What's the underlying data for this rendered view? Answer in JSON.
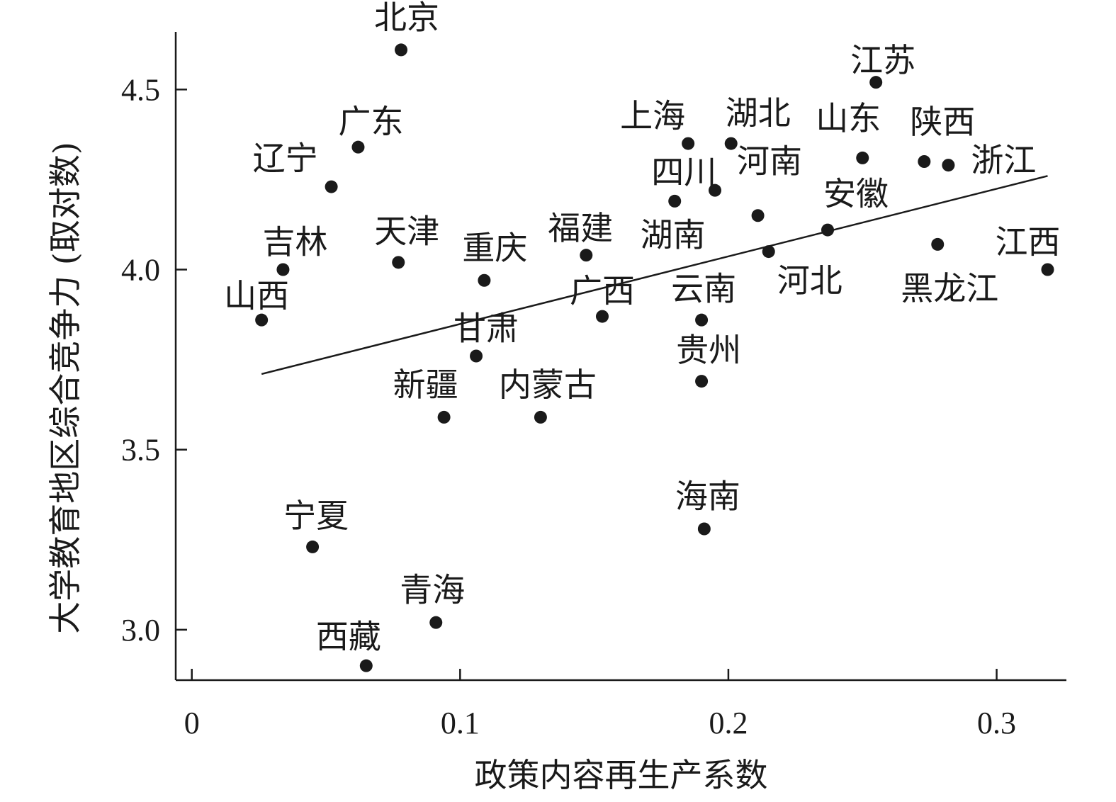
{
  "chart_data": {
    "type": "scatter",
    "xlabel": "政策内容再生产系数",
    "ylabel": "大学教育地区综合竞争力 (取对数)",
    "xlim": [
      -0.006,
      0.326
    ],
    "ylim": [
      2.86,
      4.66
    ],
    "x_ticks": [
      0,
      0.1,
      0.2,
      0.3
    ],
    "x_tick_labels": [
      "0",
      "0.1",
      "0.2",
      "0.3"
    ],
    "y_ticks": [
      3.0,
      3.5,
      4.0,
      4.5
    ],
    "y_tick_labels": [
      "3.0",
      "3.5",
      "4.0",
      "4.5"
    ],
    "grid": false,
    "legend": "none",
    "trend_line": {
      "x": [
        0.026,
        0.319
      ],
      "y": [
        3.71,
        4.26
      ]
    },
    "points": [
      {
        "label": "北京",
        "x": 0.078,
        "y": 4.61
      },
      {
        "label": "江苏",
        "x": 0.255,
        "y": 4.52
      },
      {
        "label": "上海",
        "x": 0.185,
        "y": 4.35
      },
      {
        "label": "湖北",
        "x": 0.201,
        "y": 4.35
      },
      {
        "label": "广东",
        "x": 0.062,
        "y": 4.34
      },
      {
        "label": "山东",
        "x": 0.25,
        "y": 4.31
      },
      {
        "label": "陕西",
        "x": 0.273,
        "y": 4.3
      },
      {
        "label": "浙江",
        "x": 0.282,
        "y": 4.29
      },
      {
        "label": "辽宁",
        "x": 0.052,
        "y": 4.23
      },
      {
        "label": "四川",
        "x": 0.18,
        "y": 4.19
      },
      {
        "label": "河南",
        "x": 0.195,
        "y": 4.22
      },
      {
        "label": "湖南",
        "x": 0.211,
        "y": 4.15
      },
      {
        "label": "安徽",
        "x": 0.237,
        "y": 4.11
      },
      {
        "label": "黑龙江",
        "x": 0.278,
        "y": 4.07
      },
      {
        "label": "河北",
        "x": 0.215,
        "y": 4.05
      },
      {
        "label": "福建",
        "x": 0.147,
        "y": 4.04
      },
      {
        "label": "天津",
        "x": 0.077,
        "y": 4.02
      },
      {
        "label": "吉林",
        "x": 0.034,
        "y": 4.0
      },
      {
        "label": "江西",
        "x": 0.319,
        "y": 4.0
      },
      {
        "label": "重庆",
        "x": 0.109,
        "y": 3.97
      },
      {
        "label": "广西",
        "x": 0.153,
        "y": 3.87
      },
      {
        "label": "山西",
        "x": 0.026,
        "y": 3.86
      },
      {
        "label": "云南",
        "x": 0.19,
        "y": 3.86
      },
      {
        "label": "甘肃",
        "x": 0.106,
        "y": 3.76
      },
      {
        "label": "贵州",
        "x": 0.19,
        "y": 3.69
      },
      {
        "label": "新疆",
        "x": 0.094,
        "y": 3.59
      },
      {
        "label": "内蒙古",
        "x": 0.13,
        "y": 3.59
      },
      {
        "label": "海南",
        "x": 0.191,
        "y": 3.28
      },
      {
        "label": "宁夏",
        "x": 0.045,
        "y": 3.23
      },
      {
        "label": "青海",
        "x": 0.091,
        "y": 3.02
      },
      {
        "label": "西藏",
        "x": 0.065,
        "y": 2.9
      }
    ]
  }
}
